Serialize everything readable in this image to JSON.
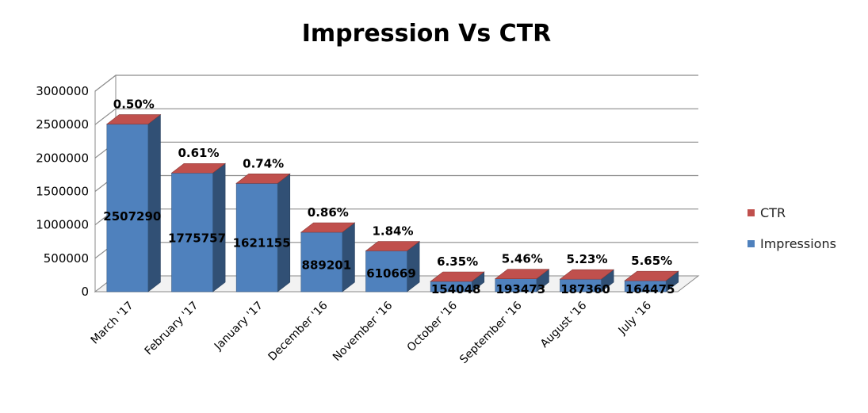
{
  "chart_data": {
    "type": "bar",
    "title": "Impression Vs CTR",
    "categories": [
      "March '17",
      "February '17",
      "January '17",
      "December '16",
      "November '16",
      "October '16",
      "September '16",
      "August '16",
      "July '16"
    ],
    "series": [
      {
        "name": "Impressions",
        "values": [
          2507290,
          1775757,
          1621155,
          889201,
          610669,
          154048,
          193473,
          187360,
          164475
        ],
        "labels": [
          "2507290",
          "1775757",
          "1621155",
          "889201",
          "610669",
          "154048",
          "193473",
          "187360",
          "164475"
        ],
        "color": "#4f81bd"
      },
      {
        "name": "CTR",
        "values": [
          0.5,
          0.61,
          0.74,
          0.86,
          1.84,
          6.35,
          5.46,
          5.23,
          5.65
        ],
        "labels": [
          "0.50%",
          "0.61%",
          "0.74%",
          "0.86%",
          "1.84%",
          "6.35%",
          "5.46%",
          "5.23%",
          "5.65%"
        ],
        "color": "#c0504d"
      }
    ],
    "yticks": [
      "0",
      "500000",
      "1000000",
      "1500000",
      "2000000",
      "2500000",
      "3000000"
    ],
    "ylim": [
      0,
      3000000
    ],
    "grid": true,
    "legend": "right",
    "legend_entries": [
      "CTR",
      "Impressions"
    ]
  }
}
